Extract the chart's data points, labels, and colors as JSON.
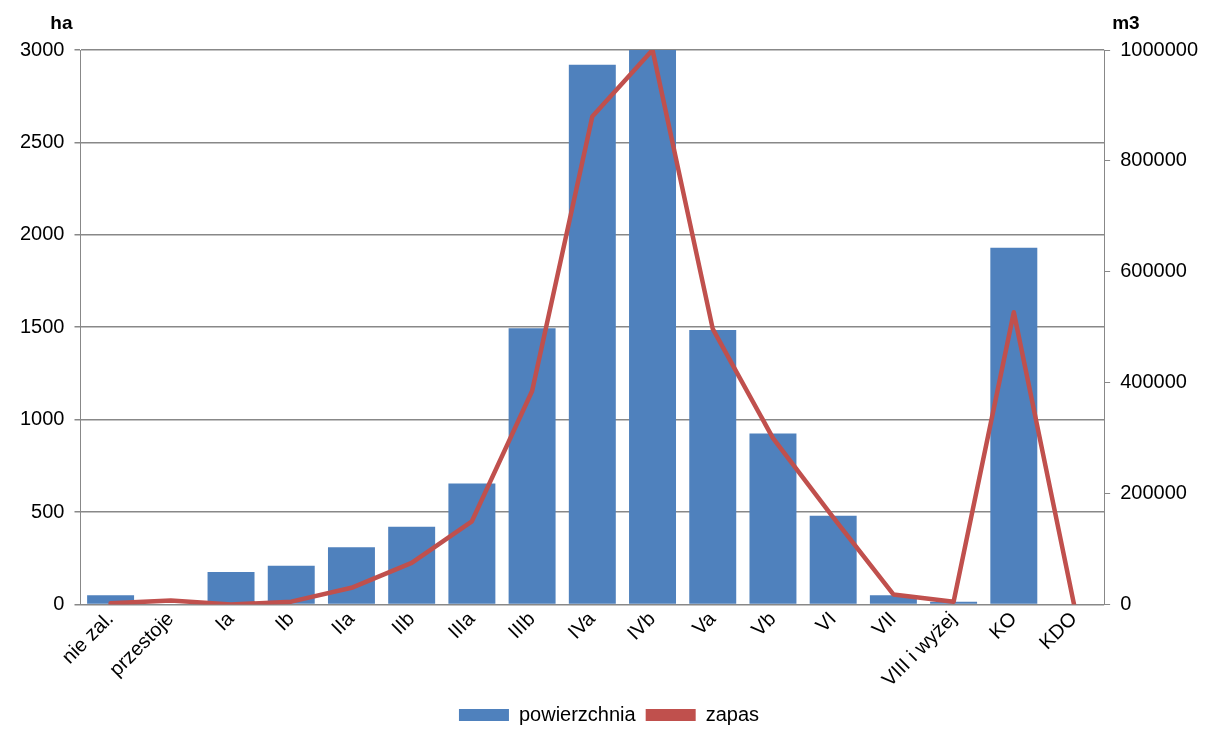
{
  "chart_data": {
    "type": "bar",
    "categories": [
      "nie zal.",
      "przestoje",
      "Ia",
      "Ib",
      "IIa",
      "IIb",
      "IIIa",
      "IIIb",
      "IVa",
      "IVb",
      "Va",
      "Vb",
      "VI",
      "VII",
      "VIII i wyżej",
      "KO",
      "KDO"
    ],
    "series": [
      {
        "name": "powierzchnia",
        "color": "#4f81bd",
        "values": [
          50,
          0,
          175,
          210,
          310,
          420,
          655,
          1495,
          2920,
          3000,
          1485,
          925,
          480,
          50,
          15,
          1930,
          0
        ]
      },
      {
        "name": "zapas",
        "type": "line",
        "axis": "y2",
        "color": "#c0504d",
        "values": [
          2000,
          7000,
          0,
          5000,
          30000,
          75000,
          150000,
          385000,
          880000,
          1000000,
          497000,
          300000,
          157000,
          18000,
          5000,
          527000,
          0
        ]
      }
    ],
    "ylabel": "ha",
    "y2label": "m3",
    "ylim": [
      0,
      3000
    ],
    "yticks": [
      0,
      500,
      1000,
      1500,
      2000,
      2500,
      3000
    ],
    "y2lim": [
      0,
      1000000
    ],
    "y2ticks": [
      0,
      200000,
      400000,
      600000,
      800000,
      1000000
    ],
    "grid": "y",
    "legend": "bottom",
    "marker": "none",
    "line_style": "solid"
  }
}
